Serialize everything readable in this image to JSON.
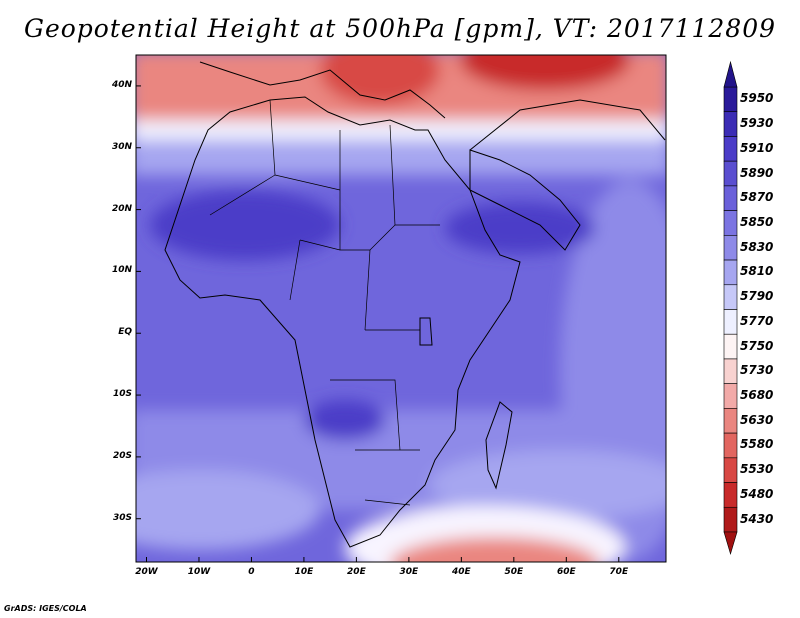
{
  "title": "Geopotential Height at 500hPa [gpm], VT: 2017112809",
  "credit": "GrADS: IGES/COLA",
  "map": {
    "lon_range": [
      -22,
      79
    ],
    "lat_range": [
      -37,
      45
    ],
    "lat_labels": [
      "40N",
      "30N",
      "20N",
      "10N",
      "EQ",
      "10S",
      "20S",
      "30S"
    ],
    "lat_values": [
      40,
      30,
      20,
      10,
      0,
      -10,
      -20,
      -30
    ],
    "lon_labels": [
      "20W",
      "10W",
      "0",
      "10E",
      "20E",
      "30E",
      "40E",
      "50E",
      "60E",
      "70E"
    ],
    "lon_values": [
      -20,
      -10,
      0,
      10,
      20,
      30,
      40,
      50,
      60,
      70
    ]
  },
  "colorbar": {
    "levels": [
      "5950",
      "5930",
      "5910",
      "5890",
      "5870",
      "5850",
      "5830",
      "5810",
      "5790",
      "5770",
      "5750",
      "5730",
      "5680",
      "5630",
      "5580",
      "5530",
      "5480",
      "5430"
    ],
    "colors": [
      "#2a1a9a",
      "#3b2cb5",
      "#4b3cc8",
      "#5a4ed0",
      "#6a60da",
      "#7b74e2",
      "#8e8ae8",
      "#a6a6f0",
      "#c6c8f8",
      "#eef0ff",
      "#fdf4f4",
      "#f8d2d0",
      "#f2aaa8",
      "#ea8680",
      "#e26660",
      "#d84844",
      "#c82a2a",
      "#b01a1a"
    ]
  }
}
